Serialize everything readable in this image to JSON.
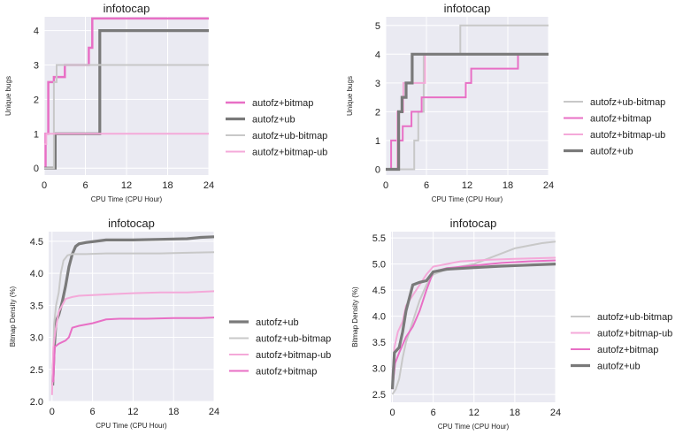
{
  "colors": {
    "autofz+bitmap": "#e86fc5",
    "autofz+ub": "#7a7a7a",
    "autofz+ub-bitmap": "#c8c8c8",
    "autofz+bitmap-ub": "#f4a9d9",
    "plot_bg": "#eaeaf2"
  },
  "chart_data": [
    {
      "type": "line",
      "title": "infotocap",
      "xlabel": "CPU Time (CPU Hour)",
      "ylabel": "Unique bugs",
      "xlim": [
        0,
        24
      ],
      "ylim": [
        -0.2,
        4.4
      ],
      "xticks": [
        0,
        6,
        12,
        18,
        24
      ],
      "yticks": [
        0,
        1,
        2,
        3,
        4
      ],
      "grid": true,
      "legend_position": "right",
      "legend": [
        "autofz+bitmap",
        "autofz+ub",
        "autofz+ub-bitmap",
        "autofz+bitmap-ub"
      ],
      "series": [
        {
          "name": "autofz+bitmap",
          "step": true,
          "width": 2.5,
          "x": [
            0,
            0.2,
            0.6,
            1.4,
            3.0,
            6.5,
            7.0,
            24
          ],
          "y": [
            0,
            1,
            2.5,
            2.65,
            3,
            3.5,
            4.35,
            4.35
          ]
        },
        {
          "name": "autofz+ub",
          "step": true,
          "width": 3.2,
          "x": [
            0,
            1.6,
            8.1,
            24
          ],
          "y": [
            0,
            1,
            4,
            4
          ]
        },
        {
          "name": "autofz+ub-bitmap",
          "step": true,
          "width": 2,
          "x": [
            0,
            1.4,
            1.8,
            24
          ],
          "y": [
            0,
            2.5,
            3,
            3
          ]
        },
        {
          "name": "autofz+bitmap-ub",
          "step": true,
          "width": 2,
          "x": [
            0,
            0.3,
            24
          ],
          "y": [
            0.7,
            1,
            1
          ]
        }
      ]
    },
    {
      "type": "line",
      "title": "infotocap",
      "xlabel": "CPU Time (CPU Hour)",
      "ylabel": "Unique bugs",
      "xlim": [
        0,
        24
      ],
      "ylim": [
        -0.2,
        5.3
      ],
      "xticks": [
        0,
        6,
        12,
        18,
        24
      ],
      "yticks": [
        0,
        1,
        2,
        3,
        4,
        5
      ],
      "grid": true,
      "legend_position": "right",
      "legend": [
        "autofz+ub-bitmap",
        "autofz+bitmap",
        "autofz+bitmap-ub",
        "autofz+ub"
      ],
      "series": [
        {
          "name": "autofz+ub-bitmap",
          "step": true,
          "width": 2,
          "x": [
            0,
            4.2,
            4.8,
            5.6,
            11.0,
            24
          ],
          "y": [
            0,
            1,
            2,
            4,
            5,
            5
          ]
        },
        {
          "name": "autofz+bitmap",
          "step": true,
          "width": 2,
          "x": [
            0,
            0.8,
            2.5,
            3.8,
            5.3,
            6.0,
            11.8,
            12.6,
            19.5,
            24
          ],
          "y": [
            0,
            1,
            1.5,
            2,
            2.5,
            2.5,
            3,
            3.5,
            4,
            4
          ]
        },
        {
          "name": "autofz+bitmap-ub",
          "step": true,
          "width": 2,
          "x": [
            0,
            1.7,
            2.6,
            5.0,
            5.8,
            24
          ],
          "y": [
            0,
            2,
            3,
            3,
            4,
            4
          ]
        },
        {
          "name": "autofz+ub",
          "step": true,
          "width": 3.2,
          "x": [
            0,
            1.9,
            2.4,
            3.0,
            3.9,
            24
          ],
          "y": [
            0,
            2,
            2.5,
            3,
            4,
            4
          ]
        }
      ]
    },
    {
      "type": "line",
      "title": "infotocap",
      "xlabel": "CPU Time (CPU Hour)",
      "ylabel": "Bitmap Density (%)",
      "xlim": [
        -0.5,
        24
      ],
      "ylim": [
        2.0,
        4.65
      ],
      "xticks": [
        0,
        6,
        12,
        18,
        24
      ],
      "yticks": [
        2.0,
        2.5,
        3.0,
        3.5,
        4.0,
        4.5
      ],
      "ytick_format": "1dp",
      "grid": true,
      "legend_position": "right",
      "legend": [
        "autofz+ub",
        "autofz+ub-bitmap",
        "autofz+bitmap-ub",
        "autofz+bitmap"
      ],
      "series": [
        {
          "name": "autofz+ub",
          "step": false,
          "width": 3.2,
          "x": [
            0.1,
            0.3,
            0.6,
            1.0,
            1.5,
            2.0,
            2.5,
            3.0,
            3.5,
            4.0,
            5.0,
            6.5,
            8.0,
            12.0,
            16.0,
            20.0,
            22.0,
            24.0
          ],
          "y": [
            2.25,
            2.8,
            3.25,
            3.35,
            3.55,
            3.8,
            4.1,
            4.3,
            4.42,
            4.46,
            4.48,
            4.5,
            4.52,
            4.52,
            4.53,
            4.54,
            4.56,
            4.57
          ]
        },
        {
          "name": "autofz+ub-bitmap",
          "step": false,
          "width": 2,
          "x": [
            0.1,
            0.3,
            0.6,
            1.0,
            1.3,
            1.7,
            2.3,
            3.0,
            5.0,
            8.0,
            16.0,
            20.0,
            24.0
          ],
          "y": [
            2.3,
            3.2,
            3.5,
            3.7,
            4.0,
            4.2,
            4.28,
            4.3,
            4.3,
            4.31,
            4.31,
            4.32,
            4.33
          ]
        },
        {
          "name": "autofz+bitmap-ub",
          "step": false,
          "width": 2,
          "x": [
            0.0,
            0.2,
            0.5,
            1.0,
            1.5,
            2.0,
            3.0,
            4.0,
            6.0,
            8.0,
            12.0,
            16.0,
            20.0,
            24.0
          ],
          "y": [
            2.1,
            2.85,
            3.1,
            3.4,
            3.5,
            3.6,
            3.63,
            3.65,
            3.66,
            3.67,
            3.69,
            3.7,
            3.7,
            3.72
          ]
        },
        {
          "name": "autofz+bitmap",
          "step": false,
          "width": 2,
          "x": [
            0.2,
            0.4,
            1.0,
            2.0,
            2.5,
            3.0,
            4.0,
            6.0,
            8.0,
            10.0,
            14.0,
            18.0,
            22.0,
            24.0
          ],
          "y": [
            2.3,
            2.85,
            2.9,
            2.95,
            3.0,
            3.15,
            3.18,
            3.22,
            3.28,
            3.29,
            3.29,
            3.3,
            3.3,
            3.31
          ]
        }
      ]
    },
    {
      "type": "line",
      "title": "infotocap",
      "xlabel": "CPU Time (CPU Hour)",
      "ylabel": "Bitmap Density (%)",
      "xlim": [
        -0.2,
        24
      ],
      "ylim": [
        2.35,
        5.62
      ],
      "xticks": [
        0,
        6,
        12,
        18,
        24
      ],
      "yticks": [
        2.5,
        3.0,
        3.5,
        4.0,
        4.5,
        5.0,
        5.5
      ],
      "ytick_format": "1dp",
      "grid": true,
      "legend_position": "right",
      "legend": [
        "autofz+ub-bitmap",
        "autofz+bitmap-ub",
        "autofz+bitmap",
        "autofz+ub"
      ],
      "series": [
        {
          "name": "autofz+ub-bitmap",
          "step": false,
          "width": 2,
          "x": [
            0.0,
            0.5,
            1.0,
            1.5,
            2.0,
            2.5,
            3.0,
            3.5,
            4.0,
            5.0,
            6.0,
            8.0,
            10.0,
            12.0,
            14.0,
            16.0,
            18.0,
            20.0,
            22.0,
            24.0
          ],
          "y": [
            2.5,
            2.6,
            2.8,
            3.2,
            3.5,
            3.7,
            3.9,
            4.1,
            4.3,
            4.6,
            4.8,
            4.9,
            4.95,
            5.0,
            5.1,
            5.2,
            5.3,
            5.35,
            5.4,
            5.43
          ]
        },
        {
          "name": "autofz+bitmap-ub",
          "step": false,
          "width": 2,
          "x": [
            0.0,
            0.3,
            0.8,
            1.5,
            2.0,
            3.0,
            4.0,
            5.0,
            6.0,
            8.0,
            10.0,
            14.0,
            18.0,
            24.0
          ],
          "y": [
            2.8,
            3.4,
            3.7,
            3.9,
            4.2,
            4.4,
            4.6,
            4.8,
            4.95,
            5.0,
            5.05,
            5.08,
            5.1,
            5.12
          ]
        },
        {
          "name": "autofz+bitmap",
          "step": false,
          "width": 2,
          "x": [
            0.0,
            0.4,
            1.0,
            2.0,
            3.0,
            4.0,
            5.0,
            6.0,
            8.0,
            12.0,
            16.0,
            20.0,
            24.0
          ],
          "y": [
            2.6,
            3.1,
            3.3,
            3.6,
            3.8,
            4.1,
            4.5,
            4.85,
            4.92,
            4.97,
            5.02,
            5.05,
            5.07
          ]
        },
        {
          "name": "autofz+ub",
          "step": false,
          "width": 3.2,
          "x": [
            0.0,
            0.3,
            1.0,
            1.5,
            2.0,
            3.0,
            4.0,
            5.0,
            6.0,
            8.0,
            12.0,
            16.0,
            20.0,
            24.0
          ],
          "y": [
            2.6,
            3.3,
            3.4,
            3.7,
            4.1,
            4.6,
            4.65,
            4.68,
            4.85,
            4.9,
            4.93,
            4.96,
            4.98,
            5.0
          ]
        }
      ]
    }
  ]
}
